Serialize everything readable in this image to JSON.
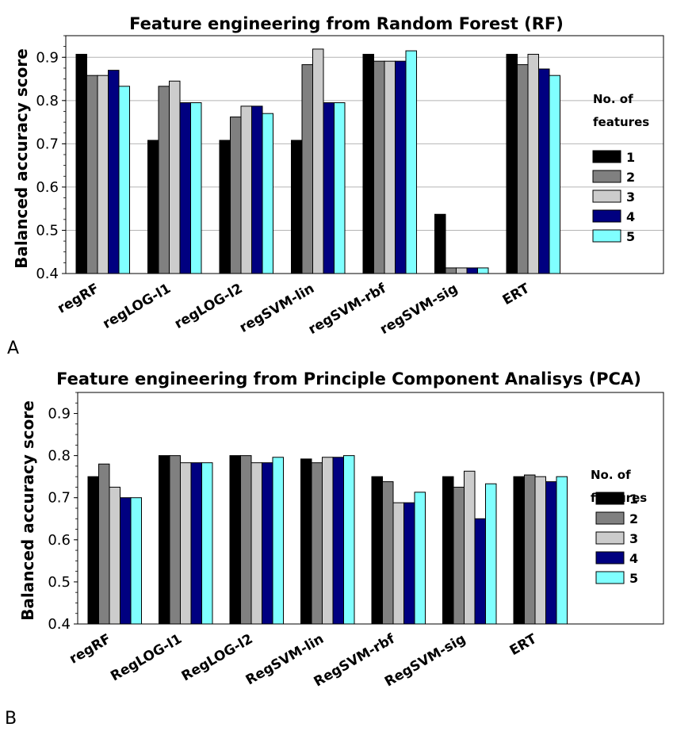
{
  "legend": {
    "title_line1": "No. of",
    "title_line2": "features",
    "colors": [
      "#000000",
      "#808080",
      "#cccccc",
      "#000080",
      "#80ffff"
    ]
  },
  "chart_data": [
    {
      "type": "bar",
      "panel_label": "A",
      "title": "Feature engineering from Random Forest (RF)",
      "ylabel": "Balanced accuracy score",
      "ylim": [
        0.4,
        0.95
      ],
      "yticks": [
        "0.4",
        "0.5",
        "0.6",
        "0.7",
        "0.8",
        "0.9"
      ],
      "grid": true,
      "legend_position": "right",
      "categories": [
        "regRF",
        "regLOG-l1",
        "regLOG-l2",
        "regSVM-lin",
        "regSVM-rbf",
        "regSVM-sig",
        "ERT"
      ],
      "series": [
        {
          "name": "1",
          "values": [
            0.907,
            0.708,
            0.708,
            0.708,
            0.907,
            0.537,
            0.907
          ]
        },
        {
          "name": "2",
          "values": [
            0.858,
            0.833,
            0.762,
            0.883,
            0.891,
            0.413,
            0.883
          ]
        },
        {
          "name": "3",
          "values": [
            0.858,
            0.845,
            0.787,
            0.919,
            0.891,
            0.413,
            0.907
          ]
        },
        {
          "name": "4",
          "values": [
            0.87,
            0.795,
            0.787,
            0.795,
            0.891,
            0.413,
            0.873
          ]
        },
        {
          "name": "5",
          "values": [
            0.833,
            0.795,
            0.77,
            0.795,
            0.915,
            0.413,
            0.858
          ]
        }
      ]
    },
    {
      "type": "bar",
      "panel_label": "B",
      "title": "Feature engineering from Principle Component Analisys (PCA)",
      "ylabel": "Balanced accuracy score",
      "ylim": [
        0.4,
        0.95
      ],
      "yticks": [
        "0.4",
        "0.5",
        "0.6",
        "0.7",
        "0.8",
        "0.9"
      ],
      "grid": false,
      "legend_position": "right",
      "categories": [
        "regRF",
        "RegLOG-l1",
        "RegLOG-l2",
        "RegSVM-lin",
        "RegSVM-rbf",
        "RegSVM-sig",
        "ERT"
      ],
      "series": [
        {
          "name": "1",
          "values": [
            0.75,
            0.8,
            0.8,
            0.792,
            0.75,
            0.75,
            0.75
          ]
        },
        {
          "name": "2",
          "values": [
            0.78,
            0.8,
            0.8,
            0.783,
            0.738,
            0.725,
            0.754
          ]
        },
        {
          "name": "3",
          "values": [
            0.725,
            0.783,
            0.783,
            0.796,
            0.688,
            0.763,
            0.75
          ]
        },
        {
          "name": "4",
          "values": [
            0.7,
            0.783,
            0.783,
            0.796,
            0.688,
            0.65,
            0.738
          ]
        },
        {
          "name": "5",
          "values": [
            0.7,
            0.783,
            0.796,
            0.8,
            0.713,
            0.733,
            0.75
          ]
        }
      ]
    }
  ]
}
